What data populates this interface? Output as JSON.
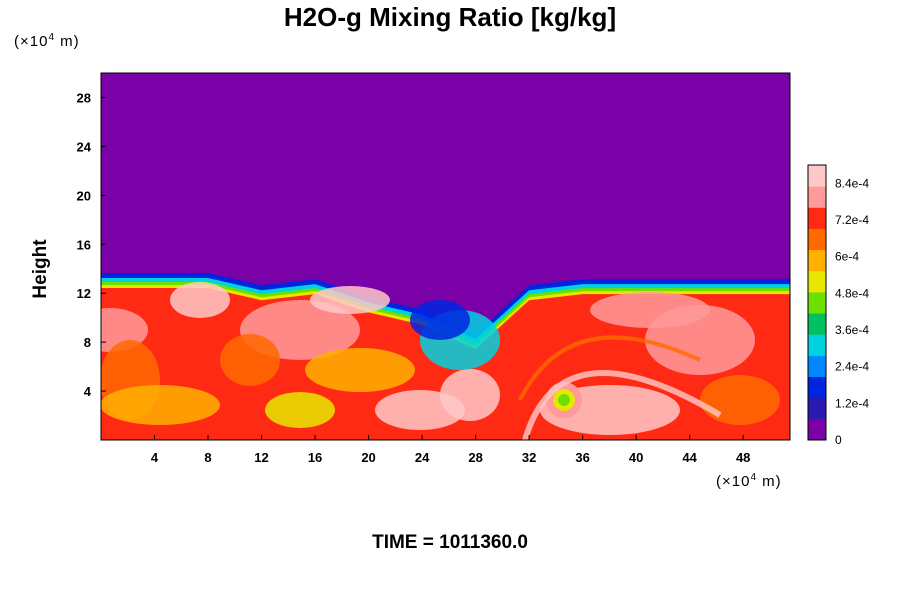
{
  "chart_data": {
    "type": "heatmap",
    "title": "H2O-g Mixing Ratio [kg/kg]",
    "xlabel": "",
    "ylabel": "Height",
    "x_unit": "(×10",
    "y_unit": "(×10",
    "unit_exp": "4",
    "unit_tail": " m)",
    "xlim": [
      0,
      51.5
    ],
    "ylim": [
      0,
      30
    ],
    "x_ticks": [
      "4",
      "8",
      "12",
      "16",
      "20",
      "24",
      "28",
      "32",
      "36",
      "40",
      "44",
      "48"
    ],
    "y_ticks": [
      "4",
      "8",
      "12",
      "16",
      "20",
      "24",
      "28"
    ],
    "colorbar": {
      "range": [
        0,
        0.0009
      ],
      "labels": [
        "0",
        "1.2e-4",
        "2.4e-4",
        "3.6e-4",
        "4.8e-4",
        "6e-4",
        "7.2e-4",
        "8.4e-4"
      ],
      "colors": [
        "#7a00a8",
        "#2a1ab0",
        "#0025e0",
        "#0088ff",
        "#00d2e0",
        "#00c060",
        "#6ee000",
        "#e6e600",
        "#ffb000",
        "#ff6a00",
        "#ff2a14",
        "#ff9a9a",
        "#ffc8c8"
      ]
    },
    "series": [
      {
        "name": "",
        "note": "",
        "x": [
          0,
          4,
          8,
          12,
          16,
          20,
          24,
          28,
          32,
          36,
          40,
          44,
          48,
          51.5
        ],
        "y": [
          13,
          13,
          13,
          12,
          12.5,
          11,
          10,
          8,
          12,
          12.5,
          12.5,
          12.5,
          12.5,
          12.5
        ]
      }
    ],
    "annotation": "TIME = 1011360.0"
  }
}
